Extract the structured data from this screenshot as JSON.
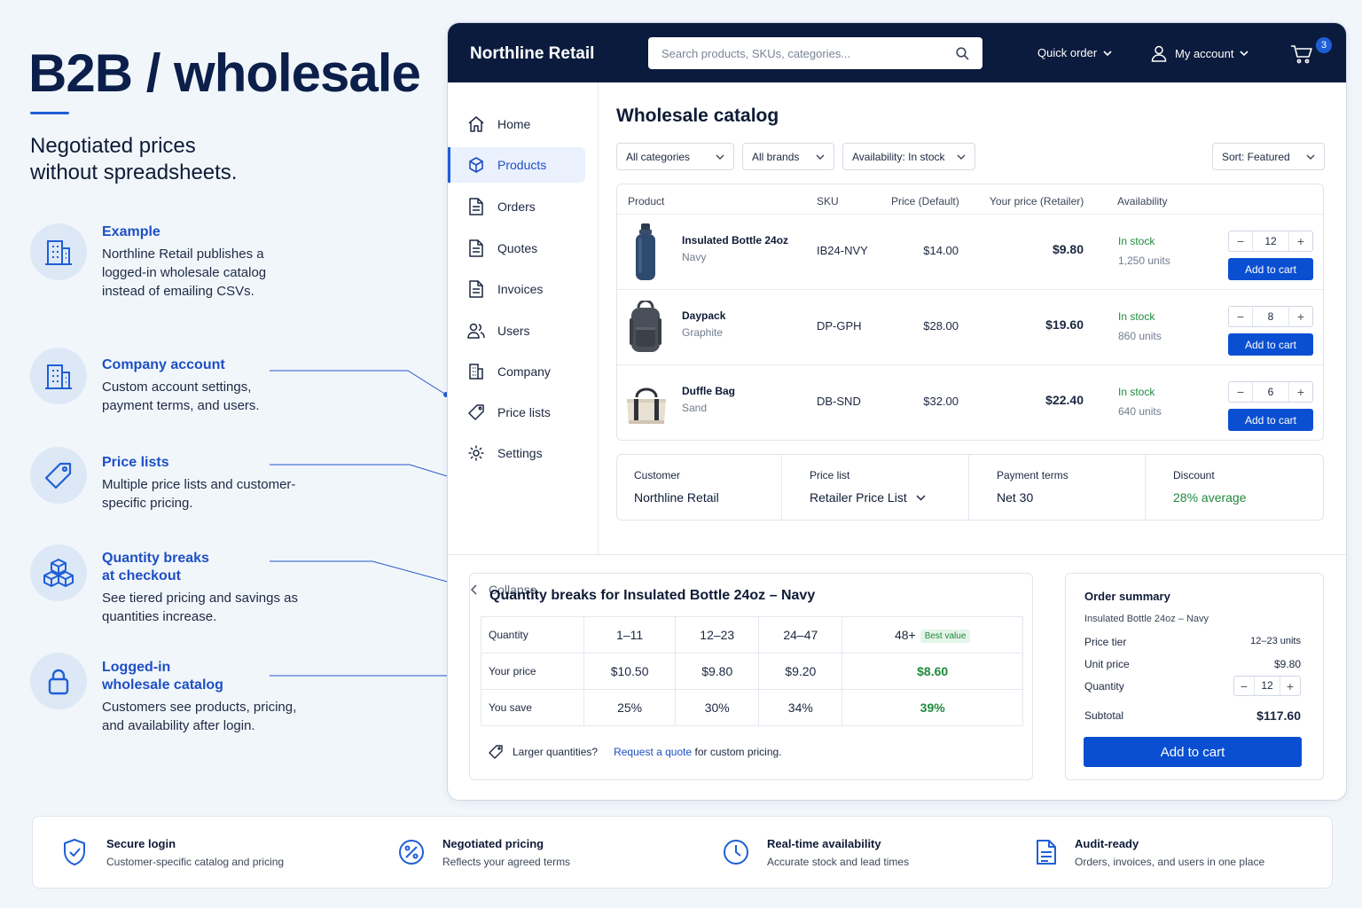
{
  "hero": {
    "title": "B2B / wholesale",
    "subtitle_line1": "Negotiated prices",
    "subtitle_line2": "without spreadsheets."
  },
  "features": [
    {
      "title_line1": "Example",
      "title_line2": "",
      "body": "Northline Retail publishes a logged-in wholesale catalog instead of emailing CSVs.",
      "icon": "building-icon"
    },
    {
      "title_line1": "Company account",
      "title_line2": "",
      "body": "Custom account settings, payment terms, and users.",
      "icon": "building-icon"
    },
    {
      "title_line1": "Price lists",
      "title_line2": "",
      "body": "Multiple price lists and customer-specific pricing.",
      "icon": "tag-icon"
    },
    {
      "title_line1": "Quantity breaks",
      "title_line2": "at checkout",
      "body": "See tiered pricing and savings as quantities increase.",
      "icon": "boxes-icon"
    },
    {
      "title_line1": "Logged-in",
      "title_line2": "wholesale catalog",
      "body": "Customers see products, pricing, and availability after login.",
      "icon": "lock-icon"
    }
  ],
  "app": {
    "brand": "Northline Retail",
    "search_placeholder": "Search products, SKUs, categories...",
    "quick_order": "Quick order",
    "my_account": "My account",
    "cart_count": "3",
    "sidebar": [
      {
        "label": "Home",
        "icon": "home-icon"
      },
      {
        "label": "Products",
        "icon": "box-icon",
        "active": true
      },
      {
        "label": "Orders",
        "icon": "document-icon"
      },
      {
        "label": "Quotes",
        "icon": "document-icon"
      },
      {
        "label": "Invoices",
        "icon": "document-icon"
      },
      {
        "label": "Users",
        "icon": "users-icon"
      },
      {
        "label": "Company",
        "icon": "building-icon"
      },
      {
        "label": "Price lists",
        "icon": "tag-icon"
      },
      {
        "label": "Settings",
        "icon": "gear-icon"
      }
    ],
    "collapse": "Collapse",
    "page_title": "Wholesale catalog",
    "filters": {
      "categories": "All categories",
      "brands": "All brands",
      "availability": "Availability: In stock",
      "sort": "Sort: Featured"
    },
    "table_headers": [
      "Product",
      "SKU",
      "Price (Default)",
      "Your price (Retailer)",
      "Availability"
    ],
    "products": [
      {
        "name": "Insulated Bottle 24oz",
        "variant": "Navy",
        "sku": "IB24-NVY",
        "price_default": "$14.00",
        "your_price": "$9.80",
        "stock": "In stock",
        "units": "1,250 units",
        "qty": "12",
        "add": "Add to cart"
      },
      {
        "name": "Daypack",
        "variant": "Graphite",
        "sku": "DP-GPH",
        "price_default": "$28.00",
        "your_price": "$19.60",
        "stock": "In stock",
        "units": "860 units",
        "qty": "8",
        "add": "Add to cart"
      },
      {
        "name": "Duffle Bag",
        "variant": "Sand",
        "sku": "DB-SND",
        "price_default": "$32.00",
        "your_price": "$22.40",
        "stock": "In stock",
        "units": "640 units",
        "qty": "6",
        "add": "Add to cart"
      }
    ],
    "info": {
      "customer_label": "Customer",
      "customer_value": "Northline Retail",
      "pricelist_label": "Price list",
      "pricelist_value": "Retailer Price List",
      "terms_label": "Payment terms",
      "terms_value": "Net 30",
      "discount_label": "Discount",
      "discount_value": "28% average"
    },
    "breaks": {
      "title": "Quantity breaks for Insulated Bottle 24oz – Navy",
      "quantity_label": "Quantity",
      "price_label": "Your price",
      "save_label": "You save",
      "tiers": [
        "1–11",
        "12–23",
        "24–47",
        "48+"
      ],
      "best_value": "Best value",
      "prices": [
        "$10.50",
        "$9.80",
        "$9.20",
        "$8.60"
      ],
      "savings": [
        "25%",
        "30%",
        "34%",
        "39%"
      ],
      "note_prefix": "Larger quantities?",
      "note_link": "Request a quote",
      "note_suffix": "for custom pricing."
    },
    "summary": {
      "title": "Order summary",
      "item": "Insulated Bottle 24oz – Navy",
      "tier_label": "Price tier",
      "tier_value": "12–23 units",
      "unit_label": "Unit price",
      "unit_value": "$9.80",
      "qty_label": "Quantity",
      "qty_value": "12",
      "subtotal_label": "Subtotal",
      "subtotal_value": "$117.60",
      "button": "Add to cart"
    }
  },
  "strip": [
    {
      "title": "Secure login",
      "desc": "Customer-specific catalog and pricing",
      "icon": "shield-check-icon"
    },
    {
      "title": "Negotiated pricing",
      "desc": "Reflects your agreed terms",
      "icon": "percent-icon"
    },
    {
      "title": "Real-time availability",
      "desc": "Accurate stock and lead times",
      "icon": "clock-icon"
    },
    {
      "title": "Audit-ready",
      "desc": "Orders, invoices, and users in one place",
      "icon": "document-icon"
    }
  ],
  "colors": {
    "accent": "#1f5fd6",
    "navy": "#0b1b3d",
    "green": "#1f8a3c",
    "button": "#0a4fd1"
  }
}
